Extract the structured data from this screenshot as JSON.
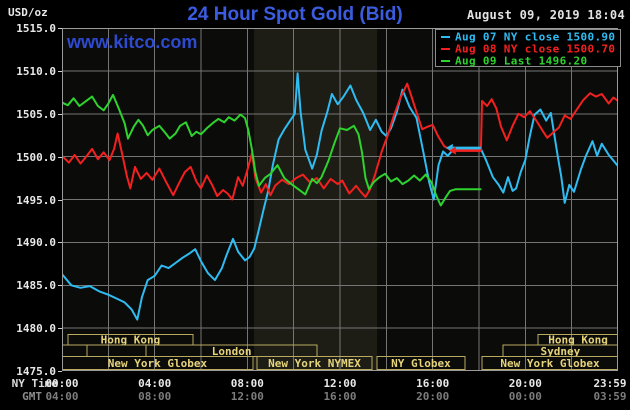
{
  "header": {
    "units_label": "USD/oz",
    "title": "24 Hour Spot Gold (Bid)",
    "datetime": "August 09, 2019 18:04",
    "watermark": "www.kitco.com"
  },
  "legend": {
    "entries": [
      {
        "label": "Aug 07 NY close 1500.90",
        "color": "cyan"
      },
      {
        "label": "Aug 08 NY close 1500.70",
        "color": "red"
      },
      {
        "label": "Aug 09 Last 1496.20",
        "color": "green"
      }
    ]
  },
  "axes": {
    "ny_time_caption": "NY Time",
    "gmt_caption": "GMT",
    "tick_hours": [
      0,
      4,
      8,
      12,
      16,
      20,
      23.983
    ],
    "ny_time_ticks": [
      "00:00",
      "04:00",
      "08:00",
      "12:00",
      "16:00",
      "20:00",
      "23:59"
    ],
    "gmt_ticks": [
      "04:00",
      "08:00",
      "12:00",
      "16:00",
      "20:00",
      "00:00",
      "03:59"
    ]
  },
  "colors": {
    "background": "#000000",
    "plot_bg": "#0b0b09",
    "band": "#1d1d15",
    "grid": "#757575",
    "border": "#9b9b9b",
    "cyan": "#2fbcf2",
    "red": "#f32020",
    "green": "#2ed32e",
    "khaki_border": "#b8aa5e",
    "khaki_text": "#e6d47c",
    "title_blue": "#3c5ce0",
    "kitco_blue": "#2e4ad0",
    "text_white": "#e8e8e8",
    "text_gray": "#8c8c8c"
  },
  "chart_data": {
    "type": "line",
    "title": "24 Hour Spot Gold (Bid)",
    "ylabel": "USD/oz",
    "x_unit": "NY time (hours)",
    "x_range": [
      0,
      24
    ],
    "y_range": [
      1475,
      1515
    ],
    "y_tick_step": 5,
    "grid": true,
    "nymex_band": {
      "start": 8.29,
      "end": 13.6
    },
    "series": [
      {
        "name": "Aug 07",
        "color": "cyan",
        "points": [
          [
            0,
            1486.3
          ],
          [
            0.4,
            1485.0
          ],
          [
            0.8,
            1484.7
          ],
          [
            1.2,
            1484.9
          ],
          [
            1.6,
            1484.3
          ],
          [
            2.0,
            1483.9
          ],
          [
            2.4,
            1483.4
          ],
          [
            2.7,
            1483.0
          ],
          [
            3.0,
            1482.2
          ],
          [
            3.25,
            1481.0
          ],
          [
            3.45,
            1483.6
          ],
          [
            3.7,
            1485.6
          ],
          [
            4.0,
            1486.1
          ],
          [
            4.3,
            1487.3
          ],
          [
            4.6,
            1487.0
          ],
          [
            4.9,
            1487.6
          ],
          [
            5.2,
            1488.2
          ],
          [
            5.5,
            1488.7
          ],
          [
            5.75,
            1489.2
          ],
          [
            6.0,
            1487.8
          ],
          [
            6.3,
            1486.4
          ],
          [
            6.6,
            1485.6
          ],
          [
            6.9,
            1487.0
          ],
          [
            7.1,
            1488.5
          ],
          [
            7.38,
            1490.4
          ],
          [
            7.6,
            1488.9
          ],
          [
            7.9,
            1487.9
          ],
          [
            8.1,
            1488.3
          ],
          [
            8.3,
            1489.3
          ],
          [
            8.5,
            1491.5
          ],
          [
            8.7,
            1493.8
          ],
          [
            8.9,
            1496.0
          ],
          [
            9.1,
            1499.0
          ],
          [
            9.35,
            1502.0
          ],
          [
            9.6,
            1503.2
          ],
          [
            9.85,
            1504.2
          ],
          [
            10.05,
            1505.0
          ],
          [
            10.17,
            1509.7
          ],
          [
            10.3,
            1505.2
          ],
          [
            10.5,
            1500.8
          ],
          [
            10.8,
            1498.6
          ],
          [
            11.0,
            1500.2
          ],
          [
            11.2,
            1503.0
          ],
          [
            11.45,
            1505.2
          ],
          [
            11.65,
            1507.3
          ],
          [
            11.9,
            1506.1
          ],
          [
            12.15,
            1507.0
          ],
          [
            12.45,
            1508.3
          ],
          [
            12.7,
            1506.6
          ],
          [
            13.0,
            1505.1
          ],
          [
            13.3,
            1503.1
          ],
          [
            13.55,
            1504.3
          ],
          [
            13.8,
            1502.9
          ],
          [
            14.0,
            1502.4
          ],
          [
            14.2,
            1503.3
          ],
          [
            14.45,
            1505.2
          ],
          [
            14.7,
            1507.8
          ],
          [
            15.0,
            1505.8
          ],
          [
            15.3,
            1504.5
          ],
          [
            15.6,
            1500.5
          ],
          [
            15.85,
            1497.0
          ],
          [
            16.05,
            1495.0
          ],
          [
            16.25,
            1499.0
          ],
          [
            16.45,
            1500.6
          ],
          [
            16.65,
            1500.1
          ],
          [
            16.85,
            1500.7
          ],
          [
            17.0,
            1500.9
          ],
          [
            18.08,
            1500.9
          ],
          [
            18.3,
            1499.6
          ],
          [
            18.6,
            1497.6
          ],
          [
            18.85,
            1496.7
          ],
          [
            19.05,
            1495.8
          ],
          [
            19.25,
            1497.6
          ],
          [
            19.45,
            1496.0
          ],
          [
            19.6,
            1496.3
          ],
          [
            19.8,
            1498.2
          ],
          [
            20.0,
            1499.6
          ],
          [
            20.2,
            1502.5
          ],
          [
            20.4,
            1504.9
          ],
          [
            20.65,
            1505.5
          ],
          [
            20.9,
            1504.2
          ],
          [
            21.1,
            1505.1
          ],
          [
            21.4,
            1500.0
          ],
          [
            21.55,
            1497.7
          ],
          [
            21.7,
            1494.6
          ],
          [
            21.9,
            1496.7
          ],
          [
            22.1,
            1495.9
          ],
          [
            22.4,
            1498.5
          ],
          [
            22.6,
            1500.0
          ],
          [
            22.9,
            1501.8
          ],
          [
            23.1,
            1500.1
          ],
          [
            23.3,
            1501.5
          ],
          [
            23.6,
            1500.2
          ],
          [
            24,
            1498.9
          ]
        ]
      },
      {
        "name": "Aug 08",
        "color": "red",
        "points": [
          [
            0,
            1500.1
          ],
          [
            0.3,
            1499.3
          ],
          [
            0.55,
            1500.2
          ],
          [
            0.8,
            1499.2
          ],
          [
            1.05,
            1500.0
          ],
          [
            1.3,
            1500.9
          ],
          [
            1.55,
            1499.7
          ],
          [
            1.8,
            1500.5
          ],
          [
            2.05,
            1499.6
          ],
          [
            2.25,
            1500.9
          ],
          [
            2.4,
            1502.7
          ],
          [
            2.6,
            1500.3
          ],
          [
            2.8,
            1497.7
          ],
          [
            2.95,
            1496.3
          ],
          [
            3.15,
            1498.8
          ],
          [
            3.4,
            1497.4
          ],
          [
            3.65,
            1498.1
          ],
          [
            3.9,
            1497.3
          ],
          [
            4.2,
            1498.6
          ],
          [
            4.5,
            1497.0
          ],
          [
            4.8,
            1495.5
          ],
          [
            5.05,
            1496.9
          ],
          [
            5.3,
            1498.2
          ],
          [
            5.55,
            1498.8
          ],
          [
            5.8,
            1497.1
          ],
          [
            6.0,
            1496.3
          ],
          [
            6.25,
            1497.8
          ],
          [
            6.5,
            1496.6
          ],
          [
            6.7,
            1495.4
          ],
          [
            6.95,
            1496.1
          ],
          [
            7.15,
            1495.7
          ],
          [
            7.35,
            1495.0
          ],
          [
            7.6,
            1497.6
          ],
          [
            7.8,
            1496.6
          ],
          [
            8.0,
            1498.4
          ],
          [
            8.2,
            1500.4
          ],
          [
            8.35,
            1497.5
          ],
          [
            8.6,
            1495.8
          ],
          [
            8.8,
            1496.8
          ],
          [
            9.0,
            1495.5
          ],
          [
            9.2,
            1496.6
          ],
          [
            9.5,
            1497.3
          ],
          [
            9.8,
            1496.8
          ],
          [
            10.1,
            1497.5
          ],
          [
            10.4,
            1497.9
          ],
          [
            10.7,
            1497.0
          ],
          [
            11.0,
            1497.5
          ],
          [
            11.3,
            1496.3
          ],
          [
            11.6,
            1497.4
          ],
          [
            11.9,
            1496.8
          ],
          [
            12.1,
            1497.2
          ],
          [
            12.4,
            1495.7
          ],
          [
            12.7,
            1496.6
          ],
          [
            12.9,
            1495.9
          ],
          [
            13.1,
            1495.3
          ],
          [
            13.3,
            1496.2
          ],
          [
            13.5,
            1497.8
          ],
          [
            13.8,
            1500.6
          ],
          [
            14.05,
            1502.4
          ],
          [
            14.3,
            1504.6
          ],
          [
            14.6,
            1506.8
          ],
          [
            14.9,
            1508.5
          ],
          [
            15.1,
            1506.9
          ],
          [
            15.35,
            1504.8
          ],
          [
            15.55,
            1503.2
          ],
          [
            15.8,
            1503.5
          ],
          [
            16.0,
            1503.7
          ],
          [
            16.25,
            1502.3
          ],
          [
            16.5,
            1501.2
          ],
          [
            16.7,
            1500.9
          ],
          [
            17.0,
            1500.7
          ],
          [
            18.08,
            1500.7
          ],
          [
            18.13,
            1506.5
          ],
          [
            18.35,
            1505.9
          ],
          [
            18.55,
            1506.7
          ],
          [
            18.75,
            1505.6
          ],
          [
            18.95,
            1503.5
          ],
          [
            19.2,
            1501.9
          ],
          [
            19.45,
            1503.6
          ],
          [
            19.7,
            1505.0
          ],
          [
            19.95,
            1504.6
          ],
          [
            20.2,
            1505.3
          ],
          [
            20.5,
            1504.1
          ],
          [
            20.75,
            1503.0
          ],
          [
            20.95,
            1502.2
          ],
          [
            21.2,
            1502.8
          ],
          [
            21.45,
            1503.4
          ],
          [
            21.7,
            1504.8
          ],
          [
            21.95,
            1504.4
          ],
          [
            22.2,
            1505.4
          ],
          [
            22.5,
            1506.6
          ],
          [
            22.8,
            1507.4
          ],
          [
            23.05,
            1507.0
          ],
          [
            23.3,
            1507.3
          ],
          [
            23.6,
            1506.2
          ],
          [
            23.8,
            1506.9
          ],
          [
            24,
            1506.5
          ]
        ]
      },
      {
        "name": "Aug 09",
        "color": "green",
        "points": [
          [
            0,
            1506.3
          ],
          [
            0.25,
            1506.0
          ],
          [
            0.5,
            1506.8
          ],
          [
            0.75,
            1505.9
          ],
          [
            1.0,
            1506.4
          ],
          [
            1.3,
            1507.0
          ],
          [
            1.55,
            1505.9
          ],
          [
            1.8,
            1505.4
          ],
          [
            2.0,
            1506.2
          ],
          [
            2.2,
            1507.2
          ],
          [
            2.45,
            1505.6
          ],
          [
            2.7,
            1503.9
          ],
          [
            2.85,
            1502.1
          ],
          [
            3.1,
            1503.5
          ],
          [
            3.3,
            1504.3
          ],
          [
            3.5,
            1503.6
          ],
          [
            3.7,
            1502.5
          ],
          [
            3.9,
            1503.1
          ],
          [
            4.2,
            1503.6
          ],
          [
            4.45,
            1502.8
          ],
          [
            4.65,
            1502.1
          ],
          [
            4.9,
            1502.7
          ],
          [
            5.1,
            1503.6
          ],
          [
            5.35,
            1504.0
          ],
          [
            5.6,
            1502.4
          ],
          [
            5.8,
            1502.9
          ],
          [
            6.0,
            1502.6
          ],
          [
            6.25,
            1503.3
          ],
          [
            6.5,
            1503.9
          ],
          [
            6.75,
            1504.4
          ],
          [
            7.0,
            1504.0
          ],
          [
            7.2,
            1504.6
          ],
          [
            7.45,
            1504.2
          ],
          [
            7.7,
            1504.9
          ],
          [
            7.9,
            1504.5
          ],
          [
            8.05,
            1503.0
          ],
          [
            8.2,
            1500.8
          ],
          [
            8.35,
            1498.2
          ],
          [
            8.5,
            1496.6
          ],
          [
            8.75,
            1497.5
          ],
          [
            9.0,
            1498.0
          ],
          [
            9.3,
            1499.0
          ],
          [
            9.6,
            1497.5
          ],
          [
            9.9,
            1496.8
          ],
          [
            10.2,
            1496.2
          ],
          [
            10.5,
            1495.6
          ],
          [
            10.8,
            1497.4
          ],
          [
            11.0,
            1496.9
          ],
          [
            11.2,
            1497.6
          ],
          [
            11.5,
            1499.5
          ],
          [
            11.75,
            1501.5
          ],
          [
            12.0,
            1503.3
          ],
          [
            12.3,
            1503.1
          ],
          [
            12.6,
            1503.6
          ],
          [
            12.8,
            1502.6
          ],
          [
            12.95,
            1500.5
          ],
          [
            13.1,
            1497.5
          ],
          [
            13.25,
            1496.2
          ],
          [
            13.45,
            1497.0
          ],
          [
            13.7,
            1497.6
          ],
          [
            13.95,
            1498.0
          ],
          [
            14.2,
            1497.1
          ],
          [
            14.45,
            1497.5
          ],
          [
            14.7,
            1496.8
          ],
          [
            14.95,
            1497.2
          ],
          [
            15.2,
            1497.8
          ],
          [
            15.45,
            1497.2
          ],
          [
            15.7,
            1497.9
          ],
          [
            15.95,
            1497.0
          ],
          [
            16.15,
            1495.5
          ],
          [
            16.35,
            1494.3
          ],
          [
            16.55,
            1495.2
          ],
          [
            16.75,
            1496.0
          ],
          [
            17.0,
            1496.2
          ],
          [
            18.07,
            1496.2
          ]
        ]
      }
    ],
    "close_markers": [
      {
        "series": "Aug 07",
        "value": 1500.9,
        "from": 17.0,
        "to": 18.08,
        "color": "cyan"
      },
      {
        "series": "Aug 08",
        "value": 1500.7,
        "from": 17.0,
        "to": 18.08,
        "color": "red"
      }
    ],
    "sessions": [
      {
        "row": 0,
        "boxes": [
          {
            "label": "Hong Kong",
            "start": 0.26,
            "end": 5.65
          },
          {
            "label": "Hong Kong",
            "start": 20.55,
            "end": 24
          }
        ]
      },
      {
        "row": 1,
        "boxes": [
          {
            "label": "",
            "start": 0,
            "end": 1.08
          },
          {
            "label": "",
            "start": 1.08,
            "end": 3.63
          },
          {
            "label": "London",
            "start": 3.63,
            "end": 11.01
          },
          {
            "label": "Sydney",
            "start": 19.03,
            "end": 24
          }
        ]
      },
      {
        "row": 2,
        "boxes": [
          {
            "label": "New York Globex",
            "start": 0,
            "end": 8.24
          },
          {
            "label": "New York NYMEX",
            "start": 8.42,
            "end": 13.38
          },
          {
            "label": "NY Globex",
            "start": 13.6,
            "end": 17.39
          },
          {
            "label": "New York Globex",
            "start": 18.13,
            "end": 24
          }
        ]
      }
    ]
  }
}
